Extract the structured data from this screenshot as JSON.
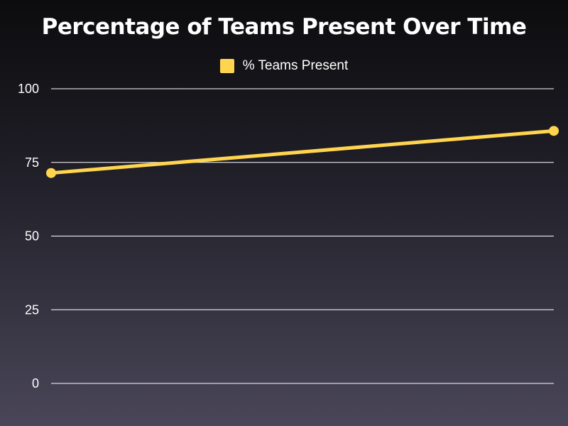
{
  "chart_data": {
    "type": "line",
    "title": "Percentage of Teams Present Over Time",
    "xlabel": "",
    "ylabel": "",
    "ylim": [
      0,
      100
    ],
    "yticks": [
      0,
      25,
      50,
      75,
      100
    ],
    "grid": true,
    "legend_position": "top-center",
    "series": [
      {
        "name": "% Teams Present",
        "color": "#ffd54f",
        "x": [
          0,
          1
        ],
        "values": [
          71.4,
          85.7
        ]
      }
    ]
  }
}
